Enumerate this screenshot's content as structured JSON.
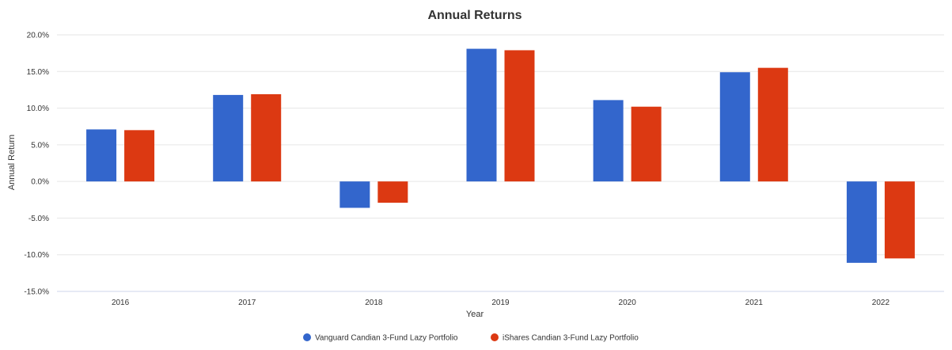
{
  "chart_data": {
    "type": "bar",
    "title": "Annual Returns",
    "xlabel": "Year",
    "ylabel": "Annual Return",
    "categories": [
      "2016",
      "2017",
      "2018",
      "2019",
      "2020",
      "2021",
      "2022"
    ],
    "series": [
      {
        "name": "Vanguard Candian 3-Fund Lazy Portfolio",
        "color": "#3366cc",
        "values": [
          7.1,
          11.8,
          -3.6,
          18.1,
          11.1,
          14.9,
          -11.1
        ]
      },
      {
        "name": "iShares Candian 3-Fund Lazy Portfolio",
        "color": "#dc3912",
        "values": [
          7.0,
          11.9,
          -2.9,
          17.9,
          10.2,
          15.5,
          -10.5
        ]
      }
    ],
    "ylim": [
      -15,
      20
    ],
    "yticks": [
      "20.0%",
      "15.0%",
      "10.0%",
      "5.0%",
      "0.0%",
      "-5.0%",
      "-10.0%",
      "-15.0%"
    ],
    "ytick_values": [
      20,
      15,
      10,
      5,
      0,
      -5,
      -10,
      -15
    ],
    "grid": true,
    "legend_position": "bottom"
  }
}
